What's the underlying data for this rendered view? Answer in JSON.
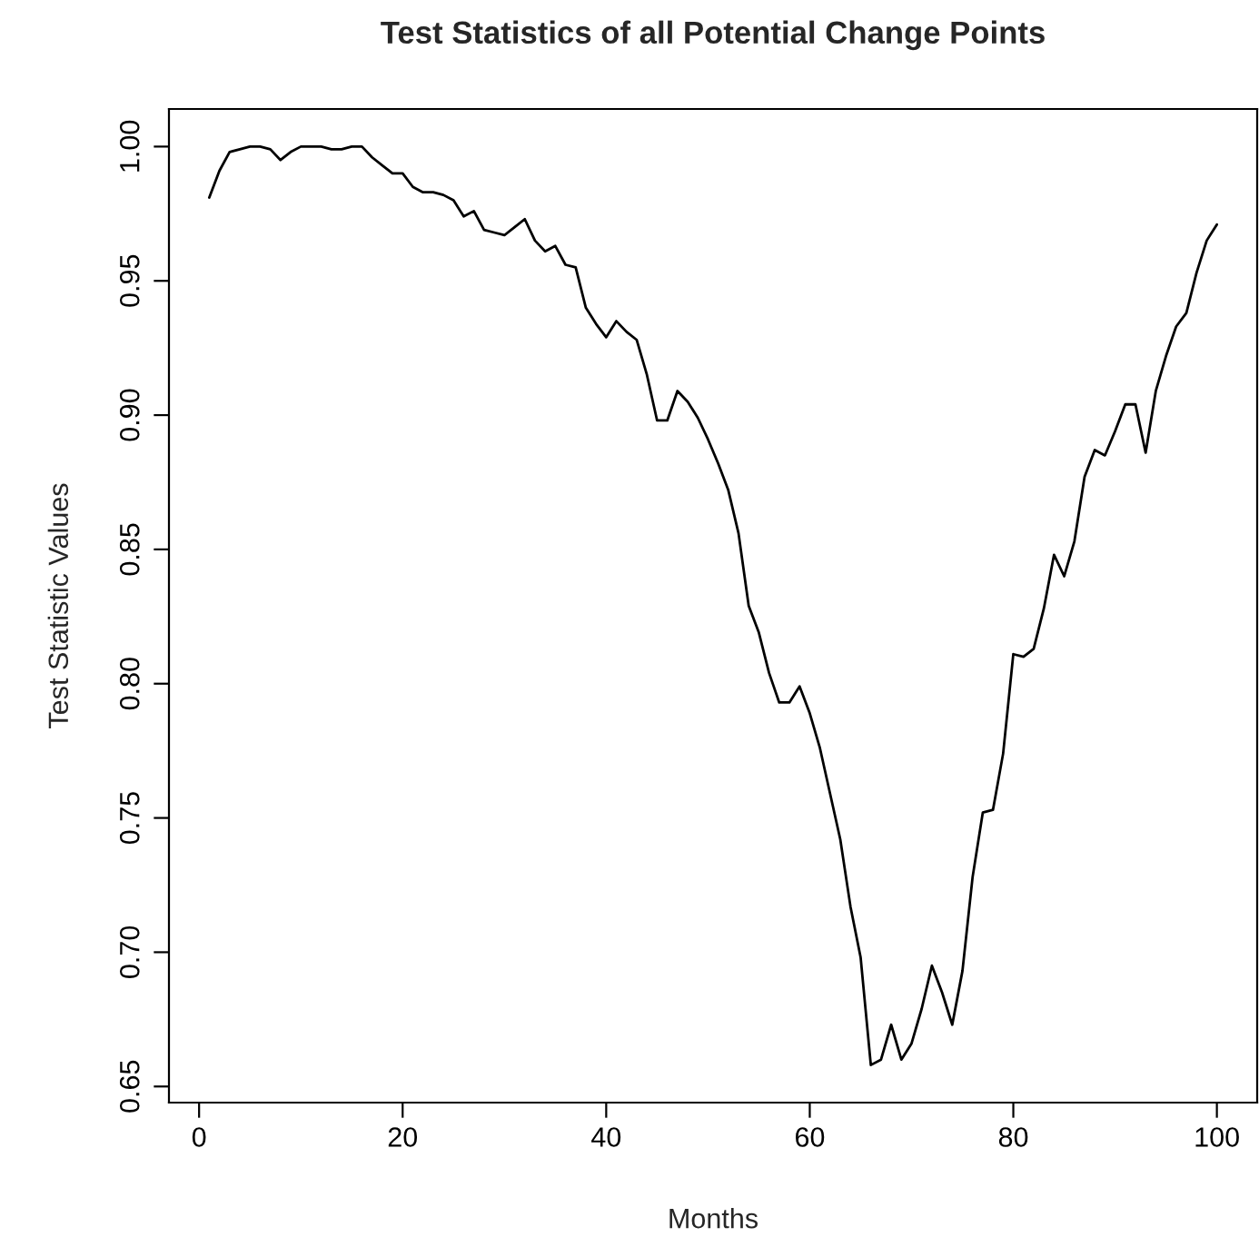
{
  "chart_data": {
    "type": "line",
    "title": "Test Statistics of all Potential Change Points",
    "xlabel": "Months",
    "ylabel": "Test Statistic Values",
    "x": [
      1,
      2,
      3,
      4,
      5,
      6,
      7,
      8,
      9,
      10,
      11,
      12,
      13,
      14,
      15,
      16,
      17,
      18,
      19,
      20,
      21,
      22,
      23,
      24,
      25,
      26,
      27,
      28,
      29,
      30,
      31,
      32,
      33,
      34,
      35,
      36,
      37,
      38,
      39,
      40,
      41,
      42,
      43,
      44,
      45,
      46,
      47,
      48,
      49,
      50,
      51,
      52,
      53,
      54,
      55,
      56,
      57,
      58,
      59,
      60,
      61,
      62,
      63,
      64,
      65,
      66,
      67,
      68,
      69,
      70,
      71,
      72,
      73,
      74,
      75,
      76,
      77,
      78,
      79,
      80,
      81,
      82,
      83,
      84,
      85,
      86,
      87,
      88,
      89,
      90,
      91,
      92,
      93,
      94,
      95,
      96,
      97,
      98,
      99,
      100
    ],
    "series": [
      {
        "color": "#000000",
        "values": [
          0.981,
          0.991,
          0.998,
          0.999,
          1.0,
          1.0,
          0.999,
          0.995,
          0.998,
          1.0,
          1.0,
          1.0,
          0.999,
          0.999,
          1.0,
          1.0,
          0.996,
          0.993,
          0.99,
          0.99,
          0.985,
          0.983,
          0.983,
          0.982,
          0.98,
          0.974,
          0.976,
          0.969,
          0.968,
          0.967,
          0.97,
          0.973,
          0.965,
          0.961,
          0.963,
          0.956,
          0.955,
          0.94,
          0.934,
          0.929,
          0.935,
          0.931,
          0.928,
          0.915,
          0.898,
          0.898,
          0.909,
          0.905,
          0.899,
          0.891,
          0.882,
          0.872,
          0.856,
          0.829,
          0.819,
          0.804,
          0.793,
          0.793,
          0.799,
          0.789,
          0.776,
          0.759,
          0.742,
          0.717,
          0.698,
          0.658,
          0.66,
          0.673,
          0.66,
          0.666,
          0.679,
          0.695,
          0.685,
          0.673,
          0.693,
          0.728,
          0.752,
          0.753,
          0.774,
          0.811,
          0.81,
          0.813,
          0.828,
          0.848,
          0.84,
          0.853,
          0.877,
          0.887,
          0.885,
          0.894,
          0.904,
          0.904,
          0.886,
          0.909,
          0.922,
          0.933,
          0.938,
          0.953,
          0.965,
          0.971
        ]
      }
    ],
    "xlim": [
      -2.96,
      103.96
    ],
    "ylim": [
      0.644,
      1.014
    ],
    "xticks": [
      0,
      20,
      40,
      60,
      80,
      100
    ],
    "yticks": [
      {
        "value": 0.65,
        "label": "0.65"
      },
      {
        "value": 0.7,
        "label": "0.70"
      },
      {
        "value": 0.75,
        "label": "0.75"
      },
      {
        "value": 0.8,
        "label": "0.80"
      },
      {
        "value": 0.85,
        "label": "0.85"
      },
      {
        "value": 0.9,
        "label": "0.90"
      },
      {
        "value": 0.95,
        "label": "0.95"
      },
      {
        "value": 1.0,
        "label": "1.00"
      }
    ],
    "grid": false,
    "legend": false,
    "marker": "none",
    "line_style": "solid"
  }
}
